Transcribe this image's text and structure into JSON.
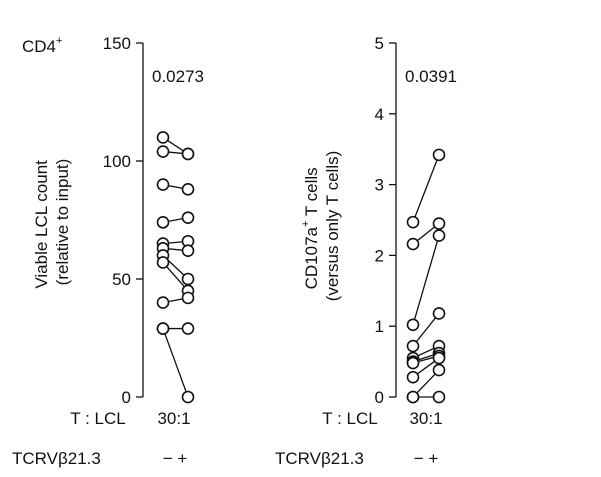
{
  "chart_data": [
    {
      "type": "scatter",
      "panel_label": "CD4",
      "panel_label_sup": "+",
      "ylabel_lines": [
        "Viable LCL count",
        "(relative to input)"
      ],
      "ylim": [
        0,
        150
      ],
      "yticks": [
        "0",
        "50",
        "100",
        "150"
      ],
      "pvalue": "0.0273",
      "row1_label": "T : LCL",
      "row1_value": "30:1",
      "row2_label": "TCRVβ21.3",
      "row2_value": "− +",
      "pairs": [
        [
          110,
          103
        ],
        [
          104,
          103
        ],
        [
          90,
          88
        ],
        [
          74,
          76
        ],
        [
          65,
          66
        ],
        [
          63,
          62
        ],
        [
          60,
          50
        ],
        [
          57,
          45
        ],
        [
          40,
          42
        ],
        [
          29,
          29
        ],
        [
          29,
          0
        ]
      ]
    },
    {
      "type": "scatter",
      "ylabel_lines": [
        "CD107a",
        "(versus only T cells)"
      ],
      "ylabel_sup": "+",
      "ylabel_suffix": " T cells",
      "ylim": [
        0,
        5
      ],
      "yticks": [
        "0",
        "1",
        "2",
        "3",
        "4",
        "5"
      ],
      "pvalue": "0.0391",
      "row1_label": "T : LCL",
      "row1_value": "30:1",
      "row2_label": "TCRVβ21.3",
      "row2_value": "− +",
      "pairs": [
        [
          2.47,
          3.42
        ],
        [
          2.16,
          2.45
        ],
        [
          1.02,
          2.28
        ],
        [
          0.72,
          1.18
        ],
        [
          0.55,
          0.72
        ],
        [
          0.5,
          0.62
        ],
        [
          0.48,
          0.58
        ],
        [
          0.28,
          0.55
        ],
        [
          0.0,
          0.38
        ],
        [
          0.0,
          0.0
        ]
      ]
    }
  ]
}
